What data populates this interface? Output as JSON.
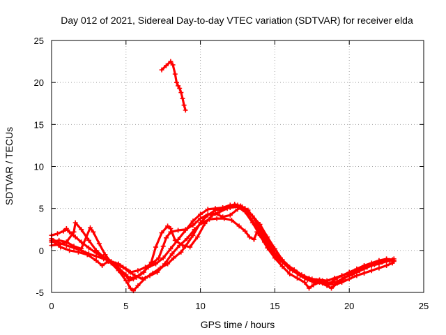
{
  "chart_data": {
    "type": "line",
    "title": "Day 012 of 2021, Sidereal Day-to-day VTEC variation (SDTVAR) for receiver elda",
    "xlabel": "GPS time / hours",
    "ylabel": "SDTVAR / TECUs",
    "xlim": [
      0,
      25
    ],
    "ylim": [
      -5,
      25
    ],
    "xticks": [
      0,
      5,
      10,
      15,
      20,
      25
    ],
    "yticks": [
      -5,
      0,
      5,
      10,
      15,
      20,
      25
    ],
    "grid": true,
    "marker": "plus",
    "color": "#ff0000",
    "series": [
      {
        "name": "track-a",
        "points": [
          [
            0,
            1.8
          ],
          [
            0.4,
            2.0
          ],
          [
            0.8,
            2.3
          ],
          [
            1.0,
            2.6
          ],
          [
            1.2,
            2.2
          ],
          [
            1.6,
            1.6
          ],
          [
            2.0,
            1.0
          ],
          [
            2.5,
            0.3
          ],
          [
            3.0,
            -0.3
          ],
          [
            3.5,
            -0.9
          ],
          [
            4.0,
            -1.4
          ],
          [
            4.5,
            -2.1
          ],
          [
            5.0,
            -2.9
          ],
          [
            5.2,
            -3.6
          ],
          [
            5.5,
            -3.4
          ],
          [
            6.0,
            -2.8
          ],
          [
            6.5,
            -2.0
          ],
          [
            7.0,
            -1.6
          ],
          [
            7.5,
            -0.9
          ],
          [
            8.0,
            0.2
          ],
          [
            8.5,
            1.3
          ],
          [
            9.0,
            2.4
          ],
          [
            9.5,
            3.5
          ],
          [
            10.0,
            4.3
          ],
          [
            10.5,
            4.9
          ],
          [
            11.0,
            5.0
          ],
          [
            11.5,
            5.1
          ],
          [
            12.0,
            5.4
          ],
          [
            12.5,
            5.4
          ],
          [
            13.0,
            5.0
          ],
          [
            13.5,
            4.1
          ],
          [
            14.0,
            3.1
          ],
          [
            14.5,
            1.6
          ],
          [
            15.0,
            0.2
          ],
          [
            15.5,
            -1.1
          ],
          [
            16.0,
            -2.0
          ],
          [
            16.5,
            -2.7
          ],
          [
            17.0,
            -3.3
          ],
          [
            17.5,
            -3.7
          ],
          [
            18.0,
            -3.8
          ],
          [
            18.5,
            -3.9
          ],
          [
            19.0,
            -4.1
          ],
          [
            19.5,
            -3.8
          ],
          [
            20.0,
            -3.4
          ],
          [
            20.5,
            -3.0
          ],
          [
            21.0,
            -2.7
          ],
          [
            21.5,
            -2.4
          ],
          [
            22.0,
            -2.1
          ],
          [
            22.5,
            -1.8
          ],
          [
            22.9,
            -1.5
          ]
        ]
      },
      {
        "name": "track-b",
        "points": [
          [
            0,
            1.4
          ],
          [
            0.5,
            0.9
          ],
          [
            1.0,
            0.6
          ],
          [
            1.5,
            0.3
          ],
          [
            2.0,
            0.0
          ],
          [
            2.5,
            -0.4
          ],
          [
            3.0,
            -0.7
          ],
          [
            3.5,
            -1.0
          ],
          [
            4.0,
            -1.3
          ],
          [
            4.5,
            -1.6
          ],
          [
            5.0,
            -2.2
          ],
          [
            5.3,
            -2.6
          ],
          [
            5.8,
            -2.4
          ],
          [
            6.3,
            -2.0
          ],
          [
            6.8,
            -1.5
          ],
          [
            7.2,
            -0.9
          ],
          [
            7.5,
            0.5
          ],
          [
            7.7,
            1.5
          ],
          [
            8.0,
            2.2
          ],
          [
            8.5,
            2.4
          ],
          [
            9.0,
            2.5
          ],
          [
            9.5,
            3.0
          ],
          [
            10.0,
            3.8
          ],
          [
            10.5,
            4.3
          ],
          [
            11.0,
            4.4
          ],
          [
            11.5,
            4.0
          ],
          [
            12.0,
            4.2
          ],
          [
            12.5,
            4.9
          ],
          [
            12.8,
            5.2
          ],
          [
            13.2,
            4.8
          ],
          [
            13.6,
            3.8
          ],
          [
            14.0,
            2.6
          ],
          [
            14.5,
            1.2
          ],
          [
            15.0,
            -0.3
          ],
          [
            15.5,
            -1.4
          ],
          [
            16.0,
            -2.2
          ],
          [
            16.5,
            -2.6
          ],
          [
            17.0,
            -3.1
          ],
          [
            17.5,
            -3.4
          ],
          [
            18.0,
            -3.5
          ],
          [
            18.5,
            -3.6
          ],
          [
            19.0,
            -3.3
          ],
          [
            19.5,
            -3.0
          ],
          [
            20.0,
            -2.6
          ],
          [
            20.5,
            -2.2
          ],
          [
            21.0,
            -1.8
          ],
          [
            21.5,
            -1.5
          ],
          [
            22.0,
            -1.2
          ],
          [
            22.5,
            -1.0
          ],
          [
            22.9,
            -1.1
          ]
        ]
      },
      {
        "name": "track-c",
        "points": [
          [
            0,
            0.6
          ],
          [
            0.5,
            0.7
          ],
          [
            1.0,
            1.0
          ],
          [
            1.5,
            2.2
          ],
          [
            1.6,
            3.3
          ],
          [
            2.0,
            2.5
          ],
          [
            2.5,
            1.2
          ],
          [
            3.0,
            0.0
          ],
          [
            3.5,
            -0.8
          ],
          [
            4.0,
            -1.5
          ],
          [
            4.5,
            -2.4
          ],
          [
            5.0,
            -3.6
          ],
          [
            5.3,
            -4.5
          ],
          [
            5.5,
            -4.8
          ],
          [
            5.8,
            -4.2
          ],
          [
            6.3,
            -3.3
          ],
          [
            6.8,
            -2.7
          ],
          [
            7.3,
            -2.1
          ],
          [
            7.8,
            -1.6
          ],
          [
            8.2,
            -0.9
          ],
          [
            8.7,
            -0.2
          ],
          [
            9.0,
            0.5
          ],
          [
            9.5,
            1.8
          ],
          [
            10.0,
            3.3
          ],
          [
            10.5,
            4.2
          ],
          [
            11.0,
            4.8
          ],
          [
            11.5,
            4.9
          ],
          [
            12.0,
            5.1
          ],
          [
            12.5,
            5.2
          ],
          [
            13.0,
            4.6
          ],
          [
            13.5,
            3.3
          ],
          [
            14.0,
            1.8
          ],
          [
            14.5,
            0.3
          ],
          [
            15.0,
            -0.9
          ],
          [
            15.5,
            -1.9
          ],
          [
            16.0,
            -2.8
          ],
          [
            16.5,
            -3.3
          ],
          [
            17.0,
            -3.8
          ],
          [
            17.3,
            -4.5
          ],
          [
            17.6,
            -4.1
          ],
          [
            18.0,
            -3.8
          ],
          [
            18.5,
            -4.2
          ],
          [
            18.8,
            -4.5
          ],
          [
            19.2,
            -3.9
          ],
          [
            19.6,
            -3.4
          ],
          [
            20.0,
            -2.9
          ],
          [
            20.5,
            -2.6
          ],
          [
            21.0,
            -2.2
          ],
          [
            21.5,
            -1.8
          ],
          [
            22.0,
            -1.6
          ],
          [
            22.5,
            -1.3
          ],
          [
            23.0,
            -1.2
          ]
        ]
      },
      {
        "name": "track-d",
        "points": [
          [
            0,
            1.2
          ],
          [
            0.6,
            0.4
          ],
          [
            1.2,
            0.0
          ],
          [
            1.8,
            -0.2
          ],
          [
            2.4,
            -0.5
          ],
          [
            3.0,
            -1.2
          ],
          [
            3.4,
            -1.8
          ],
          [
            3.8,
            -1.3
          ],
          [
            4.3,
            -1.6
          ],
          [
            4.8,
            -2.0
          ],
          [
            5.2,
            -2.5
          ],
          [
            5.6,
            -3.0
          ],
          [
            6.1,
            -3.4
          ],
          [
            6.6,
            -3.0
          ],
          [
            7.1,
            -2.6
          ],
          [
            7.6,
            -1.6
          ],
          [
            8.1,
            -0.4
          ],
          [
            8.6,
            0.6
          ],
          [
            9.1,
            1.4
          ],
          [
            9.6,
            2.5
          ],
          [
            10.1,
            3.3
          ],
          [
            10.6,
            3.7
          ],
          [
            11.1,
            3.8
          ],
          [
            11.6,
            3.8
          ],
          [
            12.1,
            3.6
          ],
          [
            12.6,
            2.9
          ],
          [
            13.0,
            2.3
          ],
          [
            13.3,
            1.6
          ],
          [
            13.6,
            1.3
          ],
          [
            13.8,
            2.2
          ],
          [
            14.3,
            1.0
          ],
          [
            14.8,
            -0.2
          ],
          [
            15.3,
            -1.1
          ],
          [
            15.8,
            -1.7
          ],
          [
            16.3,
            -2.3
          ],
          [
            16.8,
            -2.9
          ],
          [
            17.3,
            -3.3
          ],
          [
            17.8,
            -3.6
          ],
          [
            18.2,
            -3.9
          ],
          [
            18.6,
            -4.1
          ],
          [
            19.0,
            -3.5
          ],
          [
            19.5,
            -3.0
          ],
          [
            20.0,
            -2.7
          ],
          [
            20.5,
            -2.4
          ],
          [
            21.0,
            -2.0
          ],
          [
            21.5,
            -1.7
          ],
          [
            22.0,
            -1.3
          ],
          [
            22.5,
            -1.2
          ],
          [
            23.0,
            -1.0
          ]
        ]
      },
      {
        "name": "track-e",
        "points": [
          [
            0,
            1.0
          ],
          [
            0.5,
            1.2
          ],
          [
            1.0,
            1.0
          ],
          [
            1.5,
            0.5
          ],
          [
            2.0,
            0.2
          ],
          [
            2.6,
            2.7
          ],
          [
            2.8,
            2.2
          ],
          [
            3.2,
            0.8
          ],
          [
            3.6,
            -0.5
          ],
          [
            4.0,
            -1.4
          ],
          [
            4.4,
            -2.0
          ],
          [
            4.9,
            -2.9
          ],
          [
            5.3,
            -3.3
          ],
          [
            5.7,
            -3.2
          ],
          [
            6.2,
            -2.6
          ],
          [
            6.7,
            -1.4
          ],
          [
            7.0,
            0.4
          ],
          [
            7.4,
            2.1
          ],
          [
            7.8,
            2.9
          ],
          [
            8.0,
            2.6
          ],
          [
            8.3,
            1.2
          ],
          [
            8.8,
            0.6
          ],
          [
            9.3,
            0.4
          ],
          [
            9.8,
            1.6
          ],
          [
            10.3,
            3.2
          ],
          [
            10.8,
            4.2
          ],
          [
            11.3,
            4.6
          ],
          [
            11.8,
            5.0
          ],
          [
            12.3,
            5.5
          ],
          [
            12.7,
            5.3
          ],
          [
            13.2,
            4.3
          ],
          [
            13.7,
            3.0
          ],
          [
            14.2,
            1.6
          ],
          [
            14.7,
            0.3
          ],
          [
            15.2,
            -0.8
          ],
          [
            15.7,
            -1.6
          ],
          [
            16.2,
            -2.4
          ],
          [
            16.7,
            -3.0
          ],
          [
            17.2,
            -3.5
          ],
          [
            17.7,
            -3.8
          ],
          [
            18.2,
            -3.6
          ],
          [
            18.7,
            -3.9
          ],
          [
            19.2,
            -3.7
          ],
          [
            19.7,
            -3.2
          ],
          [
            20.2,
            -2.9
          ],
          [
            20.7,
            -2.4
          ],
          [
            21.2,
            -2.0
          ],
          [
            21.7,
            -1.7
          ],
          [
            22.2,
            -1.4
          ],
          [
            22.7,
            -1.2
          ],
          [
            23.0,
            -1.3
          ]
        ]
      },
      {
        "name": "track-f",
        "points": [
          [
            7.4,
            21.5
          ],
          [
            7.7,
            22.0
          ],
          [
            8.0,
            22.5
          ],
          [
            8.15,
            22.1
          ],
          [
            8.3,
            21.0
          ],
          [
            8.4,
            20.0
          ],
          [
            8.5,
            19.6
          ],
          [
            8.6,
            19.3
          ],
          [
            8.7,
            18.8
          ],
          [
            8.8,
            18.1
          ],
          [
            8.9,
            17.3
          ],
          [
            9.0,
            16.7
          ]
        ]
      }
    ]
  }
}
